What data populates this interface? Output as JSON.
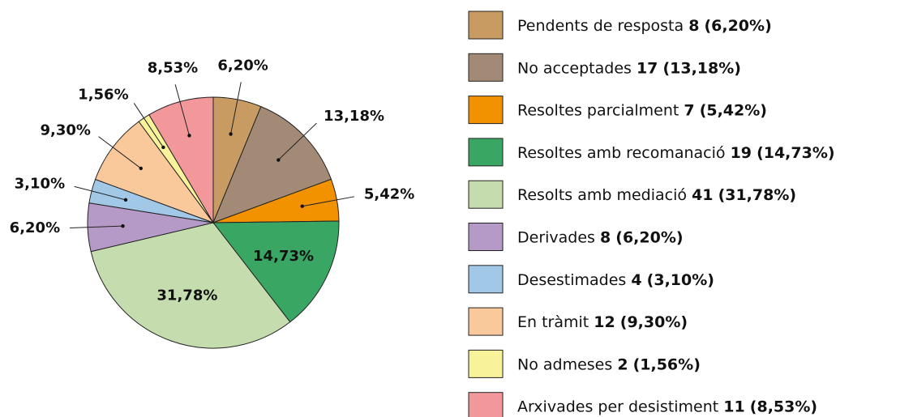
{
  "chart_data": {
    "type": "pie",
    "categories": [
      "Pendents de resposta",
      "No acceptades",
      "Resoltes parcialment",
      "Resoltes amb recomanació",
      "Resolts amb mediació",
      "Derivades",
      "Desestimades",
      "En tràmit",
      "No admeses",
      "Arxivades per desistiment"
    ],
    "values": [
      6.2,
      13.18,
      5.42,
      14.73,
      31.78,
      6.2,
      3.1,
      9.3,
      1.56,
      8.53
    ],
    "value_labels": [
      "6,20%",
      "13,18%",
      "5,42%",
      "14,73%",
      "31,78%",
      "6,20%",
      "3,10%",
      "9,30%",
      "1,56%",
      "8,53%"
    ],
    "counts": [
      8,
      17,
      7,
      19,
      41,
      8,
      4,
      12,
      2,
      11
    ],
    "legend_value_labels": [
      "(6,20%)",
      "(13,18%)",
      "(5,42%)",
      "(14,73%)",
      "(31,78%)",
      "(6,20%)",
      "(3,10%)",
      "(9,30%)",
      "(1,56%)",
      "(8,53%)"
    ],
    "colors": [
      "#c89b63",
      "#a38a76",
      "#f39200",
      "#3aa663",
      "#c5dcae",
      "#b59ac8",
      "#a2c8e8",
      "#f9c99c",
      "#f8f39b",
      "#f2989b"
    ],
    "start_angle": 0,
    "direction": "clockwise",
    "legend": "right"
  }
}
